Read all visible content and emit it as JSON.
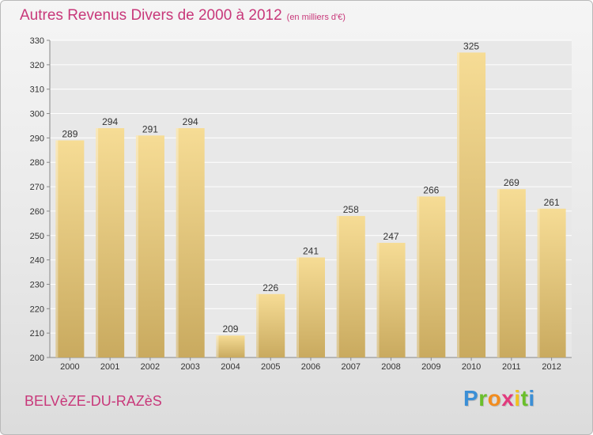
{
  "title": "Autres Revenus Divers de 2000 à 2012",
  "title_unit": "(en milliers d'€)",
  "place_label": "BELVèZE-DU-RAZèS",
  "logo": {
    "letters": [
      "P",
      "r",
      "o",
      "x",
      "i",
      "t",
      "i"
    ],
    "colors": [
      "#3b8fd6",
      "#6abf2b",
      "#f28c1e",
      "#e23a7d",
      "#f2c21e",
      "#6abf2b",
      "#3b8fd6"
    ]
  },
  "colors": {
    "bar_top": "#f6dc95",
    "bar_bottom": "#c9aa5f",
    "title": "#c8387a",
    "grid": "#ffffff"
  },
  "chart_data": {
    "type": "bar",
    "categories": [
      "2000",
      "2001",
      "2002",
      "2003",
      "2004",
      "2005",
      "2006",
      "2007",
      "2008",
      "2009",
      "2010",
      "2011",
      "2012"
    ],
    "values": [
      289,
      294,
      291,
      294,
      209,
      226,
      241,
      258,
      247,
      266,
      325,
      269,
      261
    ],
    "ylim": [
      200,
      330
    ],
    "yticks": [
      200,
      210,
      220,
      230,
      240,
      250,
      260,
      270,
      280,
      290,
      300,
      310,
      320,
      330
    ],
    "grid": true,
    "data_labels": true
  }
}
